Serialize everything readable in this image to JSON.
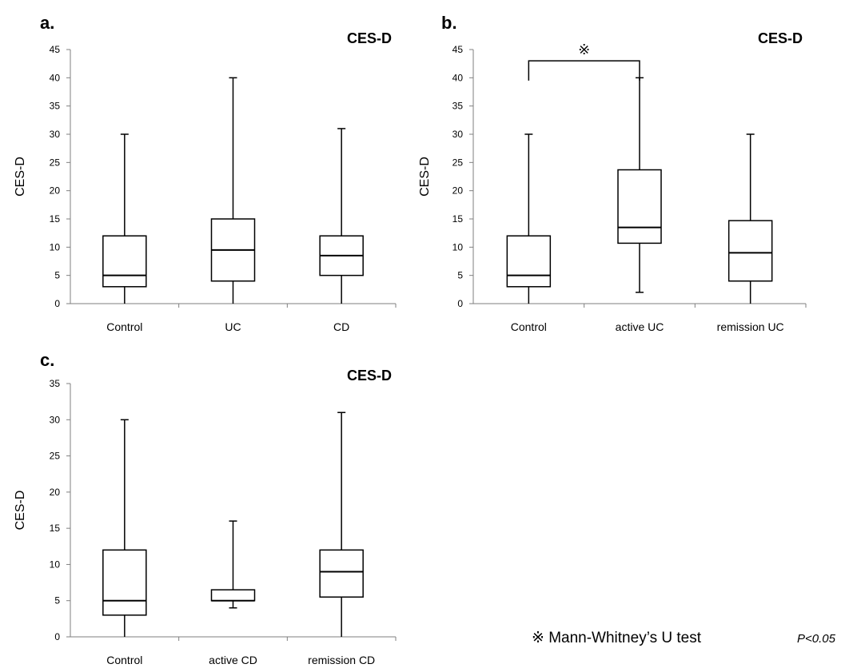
{
  "chart_data": [
    {
      "type": "boxplot",
      "panel_label": "a.",
      "title": "CES-D",
      "xlabel": "",
      "ylabel": "CES-D",
      "ylim": [
        0,
        45
      ],
      "yticks": [
        0,
        5,
        10,
        15,
        20,
        25,
        30,
        35,
        40,
        45
      ],
      "categories": [
        "Control",
        "UC",
        "CD"
      ],
      "boxes": [
        {
          "min": 0,
          "q1": 3,
          "median": 5,
          "q3": 12,
          "max": 30
        },
        {
          "min": 0,
          "q1": 4,
          "median": 9.5,
          "q3": 15,
          "max": 40
        },
        {
          "min": 0,
          "q1": 5,
          "median": 8.5,
          "q3": 12,
          "max": 31
        }
      ],
      "annotation": null
    },
    {
      "type": "boxplot",
      "panel_label": "b.",
      "title": "CES-D",
      "xlabel": "",
      "ylabel": "CES-D",
      "ylim": [
        0,
        45
      ],
      "yticks": [
        0,
        5,
        10,
        15,
        20,
        25,
        30,
        35,
        40,
        45
      ],
      "categories": [
        "Control",
        "active UC",
        "remission UC"
      ],
      "boxes": [
        {
          "min": 0,
          "q1": 3,
          "median": 5,
          "q3": 12,
          "max": 30
        },
        {
          "min": 2,
          "q1": 10.7,
          "median": 13.5,
          "q3": 23.7,
          "max": 40
        },
        {
          "min": 0,
          "q1": 4,
          "median": 9,
          "q3": 14.7,
          "max": 30
        }
      ],
      "annotation": {
        "from": 0,
        "to": 1,
        "y": 43,
        "y_drop": 39.5,
        "mark": "※"
      }
    },
    {
      "type": "boxplot",
      "panel_label": "c.",
      "title": "CES-D",
      "xlabel": "",
      "ylabel": "CES-D",
      "ylim": [
        0,
        35
      ],
      "yticks": [
        0,
        5,
        10,
        15,
        20,
        25,
        30,
        35
      ],
      "categories": [
        "Control",
        "active CD",
        "remission CD"
      ],
      "boxes": [
        {
          "min": 0,
          "q1": 3,
          "median": 5,
          "q3": 12,
          "max": 30
        },
        {
          "min": 4,
          "q1": 5,
          "median": 5,
          "q3": 6.5,
          "max": 16
        },
        {
          "min": 0,
          "q1": 5.5,
          "median": 9,
          "q3": 12,
          "max": 31
        }
      ],
      "annotation": null
    }
  ],
  "footnote": {
    "test": "※ Mann-Whitney’s U test",
    "pvalue": "P<0.05"
  }
}
